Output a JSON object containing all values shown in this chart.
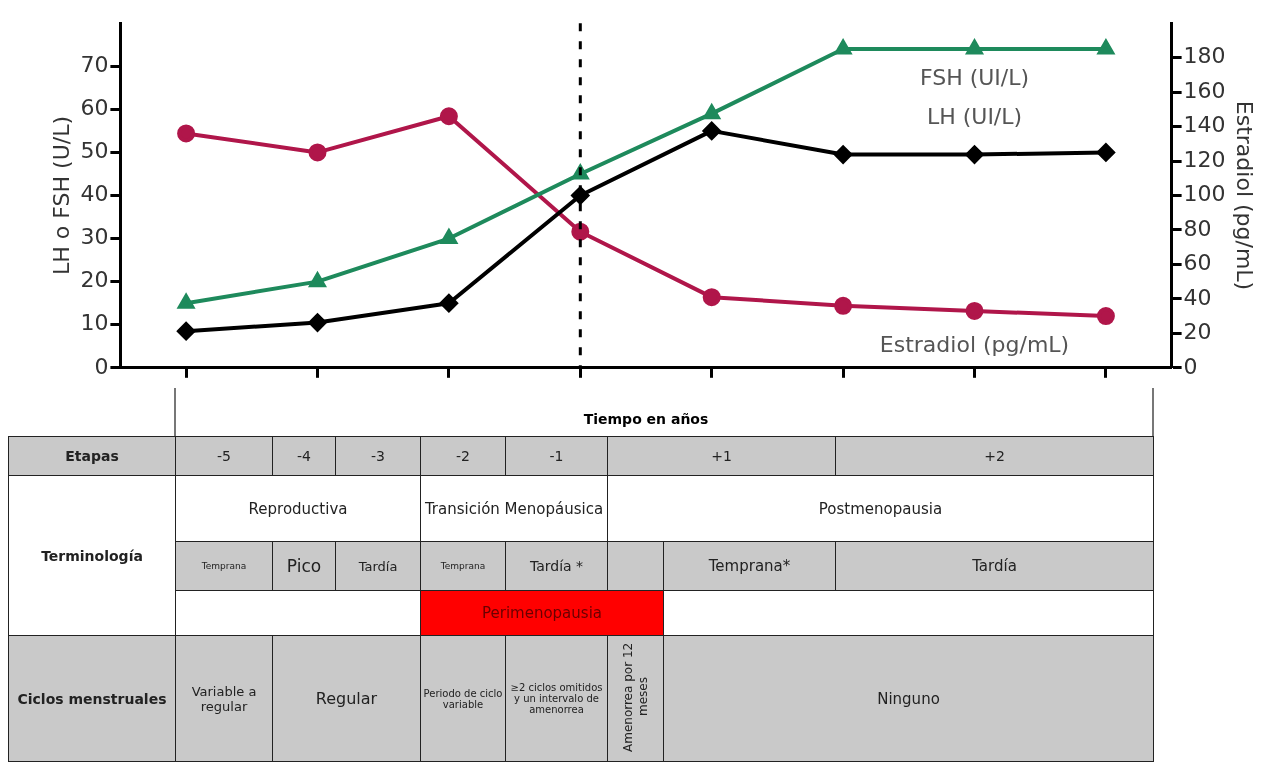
{
  "chart_data": {
    "type": "line",
    "xlabel": "Tiempo en años",
    "ylabel": "LH o FSH (U/L)",
    "y2label": "Estradiol (pg/mL)",
    "categories": [
      null,
      null,
      null,
      null,
      null,
      null,
      null,
      null
    ],
    "ylim": [
      0,
      80
    ],
    "yticks": [
      0,
      10,
      20,
      30,
      40,
      50,
      60,
      70
    ],
    "y2lim": [
      0,
      200
    ],
    "y2ticks": [
      0,
      20,
      40,
      60,
      80,
      100,
      120,
      140,
      160,
      180
    ],
    "series": [
      {
        "name": "FSH (UI/L)",
        "color": "#1e8a5c",
        "marker": "triangle",
        "values": [
          15,
          20,
          30,
          45,
          59,
          74,
          74,
          74
        ]
      },
      {
        "name": "LH (UI/L)",
        "color": "#000000",
        "marker": "diamond",
        "values": [
          8.5,
          10.5,
          15,
          40,
          55,
          49.5,
          49.5,
          50
        ]
      },
      {
        "name": "Estradiol (pg/mL)",
        "color": "#b0164a",
        "marker": "circle",
        "axis": "y2",
        "values": [
          136,
          125,
          146,
          79,
          41,
          36,
          33,
          30
        ]
      }
    ],
    "grid": false,
    "legend": false,
    "annotations": [
      "Etapas",
      "-5",
      "-4",
      "-3",
      "-2",
      "-1",
      "+1",
      "+2",
      "Terminología",
      "Reproductiva",
      "Transición Menopáusica",
      "Postmenopausia",
      "Temprana",
      "Pico",
      "Tardía",
      "Temprana",
      "Tardía *",
      "Temprana*",
      "Tardía",
      "Perimenopausia",
      "Ciclos menstruales",
      "Variable a regular",
      "Regular",
      "Periodo de ciclo variable",
      "≥2 ciclos omitidos y un intervalo de amenorrea",
      "Amenorrea por 12 meses",
      "Ninguno"
    ]
  }
}
